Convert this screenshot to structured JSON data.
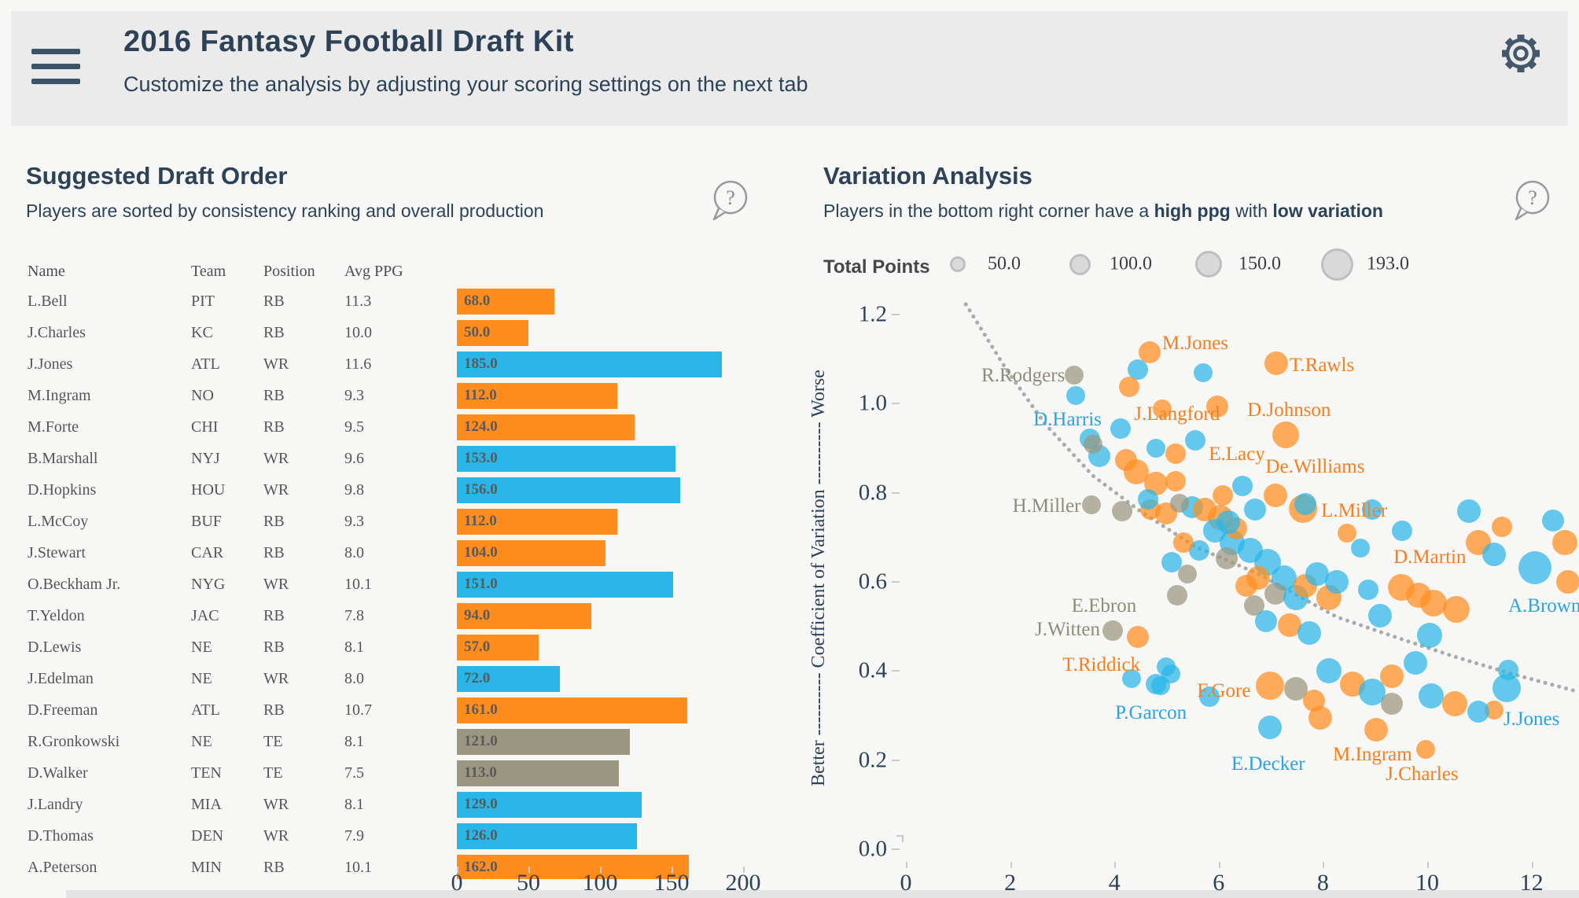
{
  "header": {
    "title": "2016 Fantasy Football Draft Kit",
    "subtitle": "Customize the analysis by adjusting your scoring settings on the next tab"
  },
  "help_glyph": "?",
  "left_panel": {
    "title": "Suggested Draft Order",
    "subtitle": "Players are sorted by consistency ranking and overall production"
  },
  "right_panel": {
    "title": "Variation Analysis",
    "subtitle_pre": "Players in the bottom right corner have a ",
    "subtitle_bold1": "high ppg",
    "subtitle_mid": " with ",
    "subtitle_bold2": "low variation",
    "legend": {
      "title": "Total Points",
      "items": [
        {
          "label": "50.0",
          "d": 20
        },
        {
          "label": "100.0",
          "d": 27
        },
        {
          "label": "150.0",
          "d": 34
        },
        {
          "label": "193.0",
          "d": 41
        }
      ]
    }
  },
  "colors": {
    "o": "#ff8d1e",
    "b": "#29b5e8",
    "g": "#9a9680"
  },
  "chart_data": [
    {
      "type": "bar",
      "title": "Suggested Draft Order",
      "orientation": "horizontal",
      "columns": [
        "Name",
        "Team",
        "Position",
        "Avg PPG"
      ],
      "x_ticks": [
        0,
        50,
        100,
        150,
        200
      ],
      "xlim": [
        0,
        204
      ],
      "value_label": "Total Points",
      "rows": [
        {
          "name": "L.Bell",
          "team": "PIT",
          "position": "RB",
          "avg_ppg": "11.3",
          "total_points": 68.0,
          "group": "o"
        },
        {
          "name": "J.Charles",
          "team": "KC",
          "position": "RB",
          "avg_ppg": "10.0",
          "total_points": 50.0,
          "group": "o"
        },
        {
          "name": "J.Jones",
          "team": "ATL",
          "position": "WR",
          "avg_ppg": "11.6",
          "total_points": 185.0,
          "group": "b"
        },
        {
          "name": "M.Ingram",
          "team": "NO",
          "position": "RB",
          "avg_ppg": "9.3",
          "total_points": 112.0,
          "group": "o"
        },
        {
          "name": "M.Forte",
          "team": "CHI",
          "position": "RB",
          "avg_ppg": "9.5",
          "total_points": 124.0,
          "group": "o"
        },
        {
          "name": "B.Marshall",
          "team": "NYJ",
          "position": "WR",
          "avg_ppg": "9.6",
          "total_points": 153.0,
          "group": "b"
        },
        {
          "name": "D.Hopkins",
          "team": "HOU",
          "position": "WR",
          "avg_ppg": "9.8",
          "total_points": 156.0,
          "group": "b"
        },
        {
          "name": "L.McCoy",
          "team": "BUF",
          "position": "RB",
          "avg_ppg": "9.3",
          "total_points": 112.0,
          "group": "o"
        },
        {
          "name": "J.Stewart",
          "team": "CAR",
          "position": "RB",
          "avg_ppg": "8.0",
          "total_points": 104.0,
          "group": "o"
        },
        {
          "name": "O.Beckham Jr.",
          "team": "NYG",
          "position": "WR",
          "avg_ppg": "10.1",
          "total_points": 151.0,
          "group": "b"
        },
        {
          "name": "T.Yeldon",
          "team": "JAC",
          "position": "RB",
          "avg_ppg": "7.8",
          "total_points": 94.0,
          "group": "o"
        },
        {
          "name": "D.Lewis",
          "team": "NE",
          "position": "RB",
          "avg_ppg": "8.1",
          "total_points": 57.0,
          "group": "o"
        },
        {
          "name": "J.Edelman",
          "team": "NE",
          "position": "WR",
          "avg_ppg": "8.0",
          "total_points": 72.0,
          "group": "b"
        },
        {
          "name": "D.Freeman",
          "team": "ATL",
          "position": "RB",
          "avg_ppg": "10.7",
          "total_points": 161.0,
          "group": "o"
        },
        {
          "name": "R.Gronkowski",
          "team": "NE",
          "position": "TE",
          "avg_ppg": "8.1",
          "total_points": 121.0,
          "group": "g"
        },
        {
          "name": "D.Walker",
          "team": "TEN",
          "position": "TE",
          "avg_ppg": "7.5",
          "total_points": 113.0,
          "group": "g"
        },
        {
          "name": "J.Landry",
          "team": "MIA",
          "position": "WR",
          "avg_ppg": "8.1",
          "total_points": 129.0,
          "group": "b"
        },
        {
          "name": "D.Thomas",
          "team": "DEN",
          "position": "WR",
          "avg_ppg": "7.9",
          "total_points": 126.0,
          "group": "b"
        },
        {
          "name": "A.Peterson",
          "team": "MIN",
          "position": "RB",
          "avg_ppg": "10.1",
          "total_points": 162.0,
          "group": "o"
        }
      ]
    },
    {
      "type": "scatter",
      "title": "Variation Analysis",
      "xlabel": "",
      "ylabel": "Better ---------- Coefficient of Variation ---------- Worse",
      "x_ticks": [
        0,
        2,
        4,
        6,
        8,
        10,
        12
      ],
      "y_ticks": [
        0.0,
        0.2,
        0.4,
        0.6,
        0.8,
        1.0,
        1.2
      ],
      "xlim": [
        0,
        12.9
      ],
      "ylim": [
        0,
        1.22
      ],
      "grid": false,
      "legend_position": "top",
      "size_encoding": "Total Points (50.0 - 193.0)",
      "trend": [
        [
          1.15,
          1.223
        ],
        [
          1.93,
          1.076
        ],
        [
          2.68,
          0.953
        ],
        [
          3.59,
          0.838
        ],
        [
          4.49,
          0.759
        ],
        [
          5.55,
          0.679
        ],
        [
          6.76,
          0.618
        ],
        [
          8.27,
          0.521
        ],
        [
          9.47,
          0.473
        ],
        [
          10.53,
          0.432
        ],
        [
          11.58,
          0.395
        ],
        [
          12.91,
          0.353
        ]
      ],
      "point_labels": [
        {
          "text": "M.Jones",
          "g": "o",
          "x": 5.55,
          "y": 1.135
        },
        {
          "text": "T.Rawls",
          "g": "o",
          "x": 7.98,
          "y": 1.085
        },
        {
          "text": "R.Rodgers",
          "g": "g",
          "x": 2.25,
          "y": 1.063
        },
        {
          "text": "D.Harris",
          "g": "b",
          "x": 3.1,
          "y": 0.963
        },
        {
          "text": "J.Langford",
          "g": "o",
          "x": 5.2,
          "y": 0.975
        },
        {
          "text": "D.Johnson",
          "g": "o",
          "x": 7.35,
          "y": 0.985
        },
        {
          "text": "E.Lacy",
          "g": "o",
          "x": 6.35,
          "y": 0.885
        },
        {
          "text": "De.Williams",
          "g": "o",
          "x": 7.85,
          "y": 0.858
        },
        {
          "text": "H.Miller",
          "g": "g",
          "x": 2.7,
          "y": 0.77
        },
        {
          "text": "L.Miller",
          "g": "o",
          "x": 8.6,
          "y": 0.759
        },
        {
          "text": "D.Martin",
          "g": "o",
          "x": 10.05,
          "y": 0.655
        },
        {
          "text": "A.Brown",
          "g": "b",
          "x": 12.25,
          "y": 0.545
        },
        {
          "text": "E.Ebron",
          "g": "g",
          "x": 3.8,
          "y": 0.545
        },
        {
          "text": "J.Witten",
          "g": "g",
          "x": 3.1,
          "y": 0.492
        },
        {
          "text": "T.Riddick",
          "g": "o",
          "x": 3.75,
          "y": 0.413
        },
        {
          "text": "F.Gore",
          "g": "o",
          "x": 6.1,
          "y": 0.355
        },
        {
          "text": "P.Garcon",
          "g": "b",
          "x": 4.7,
          "y": 0.305
        },
        {
          "text": "E.Decker",
          "g": "b",
          "x": 6.95,
          "y": 0.19
        },
        {
          "text": "M.Ingram",
          "g": "o",
          "x": 8.95,
          "y": 0.212
        },
        {
          "text": "J.Charles",
          "g": "o",
          "x": 9.9,
          "y": 0.168
        },
        {
          "text": "J.Jones",
          "g": "b",
          "x": 12.0,
          "y": 0.292
        }
      ],
      "points": [
        [
          4.68,
          1.115,
          14,
          "o"
        ],
        [
          4.45,
          1.076,
          13,
          "b"
        ],
        [
          4.28,
          1.038,
          13,
          "o"
        ],
        [
          7.1,
          1.09,
          15,
          "o"
        ],
        [
          3.23,
          1.064,
          12,
          "g"
        ],
        [
          3.26,
          1.018,
          12,
          "b"
        ],
        [
          4.12,
          0.944,
          13,
          "b"
        ],
        [
          4.92,
          0.988,
          12,
          "o"
        ],
        [
          5.97,
          0.993,
          14,
          "o"
        ],
        [
          7.29,
          0.93,
          17,
          "o"
        ],
        [
          5.17,
          0.888,
          13,
          "o"
        ],
        [
          4.8,
          0.9,
          12,
          "b"
        ],
        [
          3.56,
          0.773,
          12,
          "g"
        ],
        [
          4.15,
          0.759,
          13,
          "g"
        ],
        [
          7.62,
          0.764,
          18,
          "o"
        ],
        [
          9.5,
          0.588,
          17,
          "o"
        ],
        [
          12.07,
          0.632,
          21,
          "b"
        ],
        [
          11.52,
          0.362,
          18,
          "b"
        ],
        [
          11.28,
          0.312,
          12,
          "o"
        ],
        [
          11.55,
          0.402,
          13,
          "b"
        ],
        [
          6.98,
          0.274,
          15,
          "b"
        ],
        [
          9.02,
          0.268,
          15,
          "o"
        ],
        [
          9.97,
          0.224,
          12,
          "o"
        ],
        [
          4.89,
          0.367,
          12,
          "b"
        ],
        [
          5.08,
          0.394,
          12,
          "b"
        ],
        [
          6.98,
          0.367,
          18,
          "o"
        ],
        [
          7.48,
          0.36,
          15,
          "g"
        ],
        [
          5.2,
          0.57,
          13,
          "g"
        ],
        [
          3.97,
          0.49,
          13,
          "g"
        ],
        [
          4.45,
          0.476,
          14,
          "o"
        ],
        [
          3.53,
          0.921,
          13,
          "b"
        ],
        [
          3.71,
          0.882,
          14,
          "b"
        ],
        [
          3.59,
          0.909,
          12,
          "g"
        ],
        [
          4.22,
          0.874,
          14,
          "o"
        ],
        [
          4.42,
          0.847,
          16,
          "o"
        ],
        [
          4.69,
          0.762,
          13,
          "o"
        ],
        [
          4.99,
          0.754,
          14,
          "o"
        ],
        [
          5.49,
          0.768,
          14,
          "b"
        ],
        [
          5.55,
          0.918,
          13,
          "b"
        ],
        [
          5.7,
          1.07,
          12,
          "b"
        ],
        [
          4.8,
          0.82,
          15,
          "o"
        ],
        [
          5.18,
          0.825,
          13,
          "o"
        ],
        [
          4.64,
          0.785,
          13,
          "b"
        ],
        [
          5.73,
          0.762,
          15,
          "o"
        ],
        [
          6.04,
          0.744,
          16,
          "o"
        ],
        [
          5.93,
          0.715,
          15,
          "b"
        ],
        [
          6.26,
          0.688,
          16,
          "b"
        ],
        [
          6.33,
          0.72,
          14,
          "o"
        ],
        [
          6.15,
          0.653,
          14,
          "g"
        ],
        [
          6.61,
          0.671,
          16,
          "b"
        ],
        [
          6.94,
          0.644,
          17,
          "b"
        ],
        [
          6.76,
          0.609,
          15,
          "o"
        ],
        [
          7.25,
          0.609,
          16,
          "b"
        ],
        [
          7.09,
          0.574,
          14,
          "g"
        ],
        [
          7.48,
          0.565,
          16,
          "b"
        ],
        [
          7.66,
          0.591,
          15,
          "o"
        ],
        [
          7.89,
          0.618,
          15,
          "b"
        ],
        [
          6.68,
          0.547,
          13,
          "g"
        ],
        [
          6.91,
          0.512,
          14,
          "b"
        ],
        [
          7.36,
          0.503,
          15,
          "o"
        ],
        [
          7.74,
          0.485,
          15,
          "b"
        ],
        [
          8.11,
          0.565,
          16,
          "o"
        ],
        [
          8.27,
          0.6,
          15,
          "b"
        ],
        [
          6.53,
          0.591,
          14,
          "o"
        ],
        [
          5.63,
          0.671,
          13,
          "b"
        ],
        [
          5.32,
          0.688,
          13,
          "o"
        ],
        [
          5.4,
          0.618,
          12,
          "g"
        ],
        [
          5.1,
          0.644,
          13,
          "b"
        ],
        [
          6.08,
          0.794,
          13,
          "o"
        ],
        [
          6.46,
          0.815,
          13,
          "b"
        ],
        [
          5.25,
          0.777,
          12,
          "g"
        ],
        [
          6.18,
          0.734,
          15,
          "b"
        ],
        [
          6.7,
          0.762,
          14,
          "b"
        ],
        [
          7.09,
          0.794,
          15,
          "o"
        ],
        [
          7.66,
          0.775,
          14,
          "b"
        ],
        [
          8.46,
          0.709,
          12,
          "o"
        ],
        [
          8.72,
          0.676,
          12,
          "b"
        ],
        [
          9.52,
          0.715,
          13,
          "b"
        ],
        [
          8.94,
          0.762,
          13,
          "b"
        ],
        [
          9.83,
          0.57,
          16,
          "o"
        ],
        [
          10.12,
          0.552,
          17,
          "o"
        ],
        [
          10.56,
          0.538,
          17,
          "o"
        ],
        [
          8.87,
          0.582,
          13,
          "b"
        ],
        [
          9.1,
          0.524,
          15,
          "b"
        ],
        [
          10.04,
          0.48,
          16,
          "b"
        ],
        [
          9.77,
          0.418,
          15,
          "b"
        ],
        [
          10.8,
          0.759,
          15,
          "b"
        ],
        [
          10.98,
          0.688,
          16,
          "o"
        ],
        [
          11.28,
          0.662,
          15,
          "b"
        ],
        [
          11.43,
          0.724,
          13,
          "o"
        ],
        [
          12.64,
          0.688,
          16,
          "o"
        ],
        [
          12.41,
          0.738,
          14,
          "b"
        ],
        [
          12.7,
          0.6,
          15,
          "o"
        ],
        [
          8.11,
          0.401,
          16,
          "b"
        ],
        [
          8.57,
          0.371,
          16,
          "o"
        ],
        [
          8.94,
          0.353,
          17,
          "b"
        ],
        [
          9.32,
          0.388,
          15,
          "o"
        ],
        [
          9.32,
          0.326,
          14,
          "g"
        ],
        [
          10.08,
          0.344,
          16,
          "b"
        ],
        [
          10.53,
          0.326,
          16,
          "o"
        ],
        [
          10.98,
          0.309,
          14,
          "b"
        ],
        [
          7.83,
          0.334,
          14,
          "o"
        ],
        [
          7.95,
          0.295,
          15,
          "o"
        ],
        [
          4.99,
          0.409,
          12,
          "b"
        ],
        [
          4.8,
          0.371,
          13,
          "b"
        ],
        [
          5.82,
          0.342,
          13,
          "b"
        ],
        [
          4.33,
          0.383,
          12,
          "b"
        ]
      ]
    }
  ]
}
